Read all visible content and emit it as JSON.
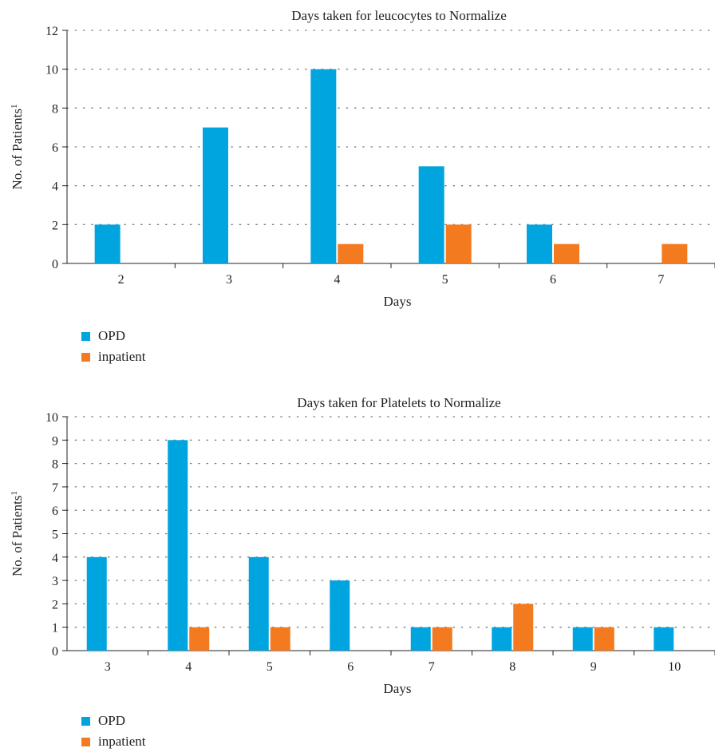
{
  "colors": {
    "opd": "#00A5DF",
    "inpatient": "#F47A20",
    "grid": "#777777"
  },
  "chart_data": [
    {
      "type": "bar",
      "title": "Days taken for leucocytes to Normalize",
      "xlabel": "Days",
      "ylabel": "No. of Patients",
      "ylabel_sup": "1",
      "categories": [
        "2",
        "3",
        "4",
        "5",
        "6",
        "7"
      ],
      "series": [
        {
          "name": "OPD",
          "values": [
            2,
            7,
            10,
            5,
            2,
            0
          ]
        },
        {
          "name": "inpatient",
          "values": [
            0,
            0,
            1,
            2,
            1,
            1
          ]
        }
      ],
      "ylim": [
        0,
        12
      ],
      "yticks": [
        "0",
        "2",
        "4",
        "6",
        "8",
        "10",
        "12"
      ],
      "grid": true,
      "legend": "bottom-left"
    },
    {
      "type": "bar",
      "title": "Days taken for Platelets to Normalize",
      "xlabel": "Days",
      "ylabel": "No. of Patients",
      "ylabel_sup": "1",
      "categories": [
        "3",
        "4",
        "5",
        "6",
        "7",
        "8",
        "9",
        "10"
      ],
      "series": [
        {
          "name": "OPD",
          "values": [
            4,
            9,
            4,
            3,
            1,
            1,
            1,
            1
          ]
        },
        {
          "name": "inpatient",
          "values": [
            0,
            1,
            1,
            0,
            1,
            2,
            1,
            0
          ]
        }
      ],
      "ylim": [
        0,
        10
      ],
      "yticks": [
        "0",
        "1",
        "2",
        "3",
        "4",
        "5",
        "6",
        "7",
        "8",
        "9",
        "10"
      ],
      "grid": true,
      "legend": "bottom-left"
    }
  ]
}
